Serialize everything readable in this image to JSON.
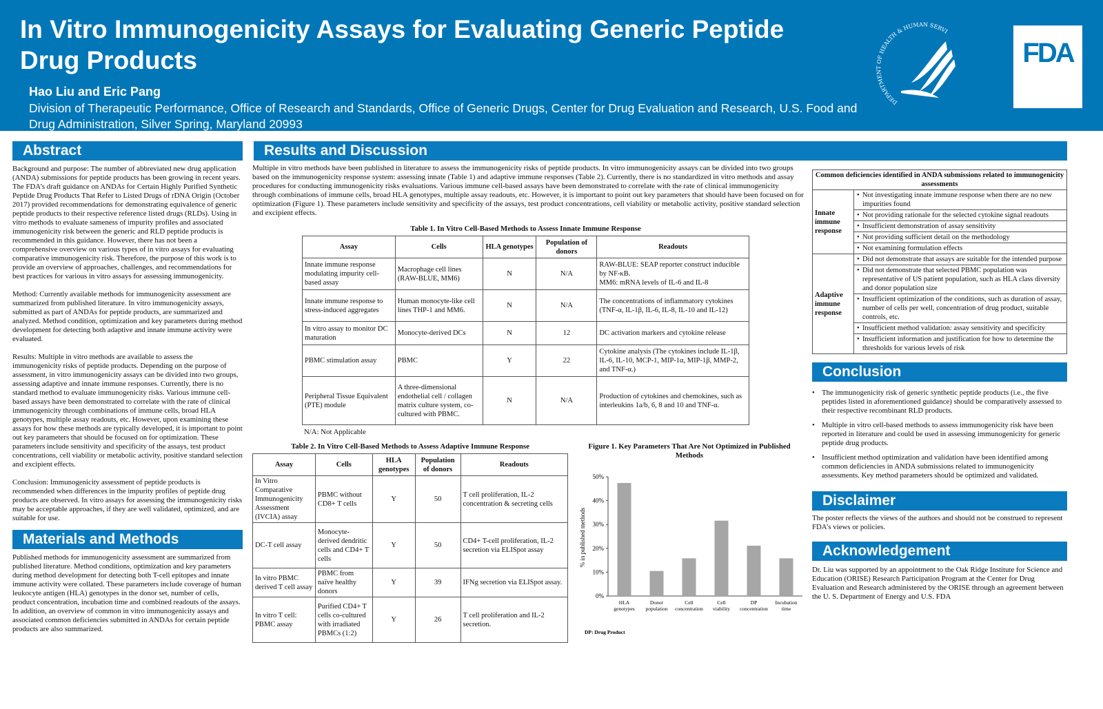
{
  "header": {
    "title": "In Vitro Immunogenicity Assays for Evaluating Generic Peptide Drug Products",
    "authors": "Hao Liu and Eric Pang",
    "affiliation": "Division of Therapeutic Performance, Office of Research and Standards, Office of Generic Drugs, Center for Drug Evaluation and Research, U.S. Food and Drug Administration, Silver Spring, Maryland 20993",
    "seal_text": "DEPARTMENT OF HEALTH & HUMAN SERVICES · USA",
    "logo": "FDA",
    "brand_color": "#0277b8"
  },
  "abstract": {
    "heading": "Abstract",
    "paragraphs": [
      "Background and purpose: The number of abbreviated new drug application (ANDA) submissions for peptide products has been growing in recent years. The FDA’s draft guidance on ANDAs for Certain Highly Purified Synthetic Peptide Drug Products That Refer to Listed Drugs of rDNA Origin (October 2017) provided recommendations for demonstrating equivalence of generic peptide products to their respective reference listed drugs (RLDs). Using in vitro methods to evaluate sameness of impurity profiles and associated immunogenicity risk between the generic and RLD peptide products is recommended in this guidance. However, there has not been a comprehensive overview on various types of in vitro assays for evaluating comparative immunogenicity risk. Therefore, the purpose of this work is to provide an overview of approaches, challenges, and recommendations for best practices for various in vitro assays for assessing immunogenicity.",
      "Method: Currently available methods for immunogenicity assessment are summarized from published literature. In vitro immunogenicity assays, submitted as part of ANDAs for peptide products, are summarized and analyzed. Method condition, optimization and key parameters during method development for detecting both adaptive and innate immune activity were evaluated.",
      "Results: Multiple in vitro methods are available to assess the immunogenicity risks of peptide products. Depending on the purpose of assessment, in vitro immunogenicity assays can be divided into two groups, assessing adaptive and innate immune responses. Currently, there is no standard method to evaluate immunogenicity risks. Various immune cell-based assays have been demonstrated to correlate with the rate of clinical immunogenicity through combinations of immune cells, broad HLA genotypes, multiple assay readouts, etc. However, upon examining these assays for how these methods are typically developed, it is important to point out key parameters that should be focused on for optimization. These parameters include sensitivity and specificity of the assays, test product concentrations, cell viability or metabolic activity, positive standard selection and excipient effects.",
      "Conclusion: Immunogenicity assessment of peptide products is recommended when differences in the impurity profiles of peptide drug products are observed. In vitro assays for assessing the immunogenicity risks may be acceptable approaches, if they are well validated, optimized, and are suitable for use."
    ]
  },
  "methods": {
    "heading": "Materials and Methods",
    "text": "Published methods for immunogenicity assessment are summarized from published literature. Method conditions, optimization and key parameters during method development for detecting both T-cell epitopes and innate immune activity were collated. These parameters include coverage of human leukocyte antigen (HLA) genotypes in the donor set, number of cells, product concentration, incubation time and combined readouts of the assays. In addition, an overview of common in vitro immunogenicity assays and associated common deficiencies submitted in ANDAs for certain peptide products are also summarized."
  },
  "results": {
    "heading": "Results and Discussion",
    "intro": "Multiple in vitro methods have been published in literature to assess the immunogenicity risks of peptide products. In vitro immunogenicity assays can be divided into two groups based on the immunogenicity response system: assessing innate (Table 1) and adaptive immune responses (Table 2). Currently, there is no standardized in vitro methods and assay procedures for conducting immunogenicity risks evaluations. Various immune cell-based assays have been demonstrated to correlate with the rate of clinical immunogenicity through combinations of immune cells, broad HLA genotypes, multiple assay readouts, etc. However, it is important to point out key parameters that should have been focused on for optimization (Figure 1). These parameters include sensitivity and specificity of the assays, test product concentrations, cell viability or metabolic activity, positive standard selection and excipient effects."
  },
  "table1": {
    "caption": "Table 1. In Vitro Cell-Based Methods to Assess Innate Immune Response",
    "headers": [
      "Assay",
      "Cells",
      "HLA genotypes",
      "Population of donors",
      "Readouts"
    ],
    "rows": [
      [
        "Innate immune response modulating impurity cell-based assay",
        "Macrophage cell lines (RAW-BLUE, MM6)",
        "N",
        "N/A",
        "RAW-BLUE: SEAP reporter construct inducible by NF-κB.\nMM6: mRNA levels of IL-6 and IL-8"
      ],
      [
        "Innate immune response to stress-induced aggregates",
        "Human monocyte-like cell lines THP-1 and MM6.",
        "N",
        "N/A",
        "The concentrations of inflammatory cytokines (TNF-α, IL-1β, IL-6, IL-8, IL-10 and IL-12)"
      ],
      [
        "In vitro assay to monitor DC maturation",
        "Monocyte-derived DCs",
        "N",
        "12",
        "DC activation markers and cytokine release"
      ],
      [
        "PBMC stimulation assay",
        "PBMC",
        "Y",
        "22",
        "Cytokine analysis (The cytokines include IL-1β, IL-6, IL-10, MCP-1, MIP-1α, MIP-1β, MMP-2, and TNF-α.)"
      ],
      [
        "Peripheral Tissue Equivalent (PTE) module",
        "A three-dimensional endothelial cell / collagen matrix culture system, co-cultured with PBMC.",
        "N",
        "N/A",
        "Production of cytokines and chemokines, such as interleukins 1a/b, 6, 8 and 10 and TNF-α."
      ]
    ],
    "note": "N/A: Not Applicable"
  },
  "table2": {
    "caption": "Table 2. In Vitro Cell-Based Methods to Assess Adaptive Immune Response",
    "headers": [
      "Assay",
      "Cells",
      "HLA genotypes",
      "Population of donors",
      "Readouts"
    ],
    "rows": [
      [
        "In Vitro Comparative Immunogenicity Assessment (IVCIA) assay",
        "PBMC without CD8+ T cells",
        "Y",
        "50",
        "T cell proliferation, IL-2 concentration & secreting cells"
      ],
      [
        "DC-T cell assay",
        "Monocyte-derived dendritic cells and CD4+ T cells",
        "Y",
        "50",
        "CD4+ T-cell proliferation, IL-2 secretion via ELISpot assay"
      ],
      [
        "In vitro PBMC derived T cell assay",
        "PBMC from naïve healthy donors",
        "Y",
        "39",
        "IFNg secretion via ELISpot assay."
      ],
      [
        "In vitro T cell: PBMC assay",
        "Purified CD4+ T cells co-cultured with irradiated PBMCs (1:2)",
        "Y",
        "26",
        "T cell proliferation and IL-2 secretion."
      ]
    ]
  },
  "chart_data": {
    "type": "bar",
    "title": "Figure 1. Key Parameters That Are Not Optimized in Published Methods",
    "categories": [
      "HLA genotypes",
      "Donor population",
      "Cell concentration",
      "Cell viability",
      "DP concentration",
      "Incubation time"
    ],
    "values": [
      47.4,
      10.5,
      15.8,
      31.6,
      21.1,
      15.8
    ],
    "ylabel": "% in published methods",
    "xlabel": "",
    "ylim": [
      0,
      50
    ],
    "yticks": [
      "0%",
      "10%",
      "20%",
      "30%",
      "40%",
      "50%"
    ],
    "note": "DP: Drug Product",
    "bar_color": "#a6a6a6"
  },
  "deficiencies": {
    "title": "Common deficiencies identified in ANDA submissions related to immunogenicity assessments",
    "groups": [
      {
        "label": "Innate immune response",
        "items": [
          "Not investigating innate immune response when there are no new impurities found",
          "Not providing rationale for the selected cytokine signal readouts",
          "Insufficient demonstration of assay sensitivity",
          "Not providing sufficient detail on the methodology",
          "Not examining formulation effects"
        ]
      },
      {
        "label": "Adaptive immune response",
        "items": [
          "Did not demonstrate that assays are suitable for the intended purpose",
          "Did not demonstrate that selected PBMC population was representative of US patient population, such as HLA class diversity and donor population size",
          "Insufficient optimization of the conditions, such as duration of assay, number of cells per well, concentration of drug product, suitable controls, etc.",
          "Insufficient method validation: assay sensitivity and specificity",
          "Insufficient information and justification for how to determine the thresholds for various levels of risk"
        ]
      }
    ]
  },
  "conclusion": {
    "heading": "Conclusion",
    "bullets": [
      "The immunogenicity risk of generic synthetic peptide products (i.e., the five peptides listed in aforementioned guidance) should be comparatively assessed to their respective recombinant RLD products.",
      "Multiple in vitro cell-based methods to assess immunogenicity risk have been reported in literature and could be used in assessing immunogenicity for generic peptide drug products.",
      "Insufficient method optimization and validation have been identified among common deficiencies in ANDA submissions related to immunogenicity assessments. Key method parameters should be optimized and validated."
    ]
  },
  "disclaimer": {
    "heading": "Disclaimer",
    "text": "The poster reflects the views of the authors and should not be construed to represent FDA’s views or policies."
  },
  "acknowledgement": {
    "heading": "Acknowledgement",
    "text": "Dr. Liu was supported by an appointment to the Oak Ridge Institute for Science and Education (ORISE) Research Participation Program at the Center for Drug Evaluation and Research administered by the ORISE through an agreement between the U. S. Department of Energy and U.S. FDA"
  }
}
